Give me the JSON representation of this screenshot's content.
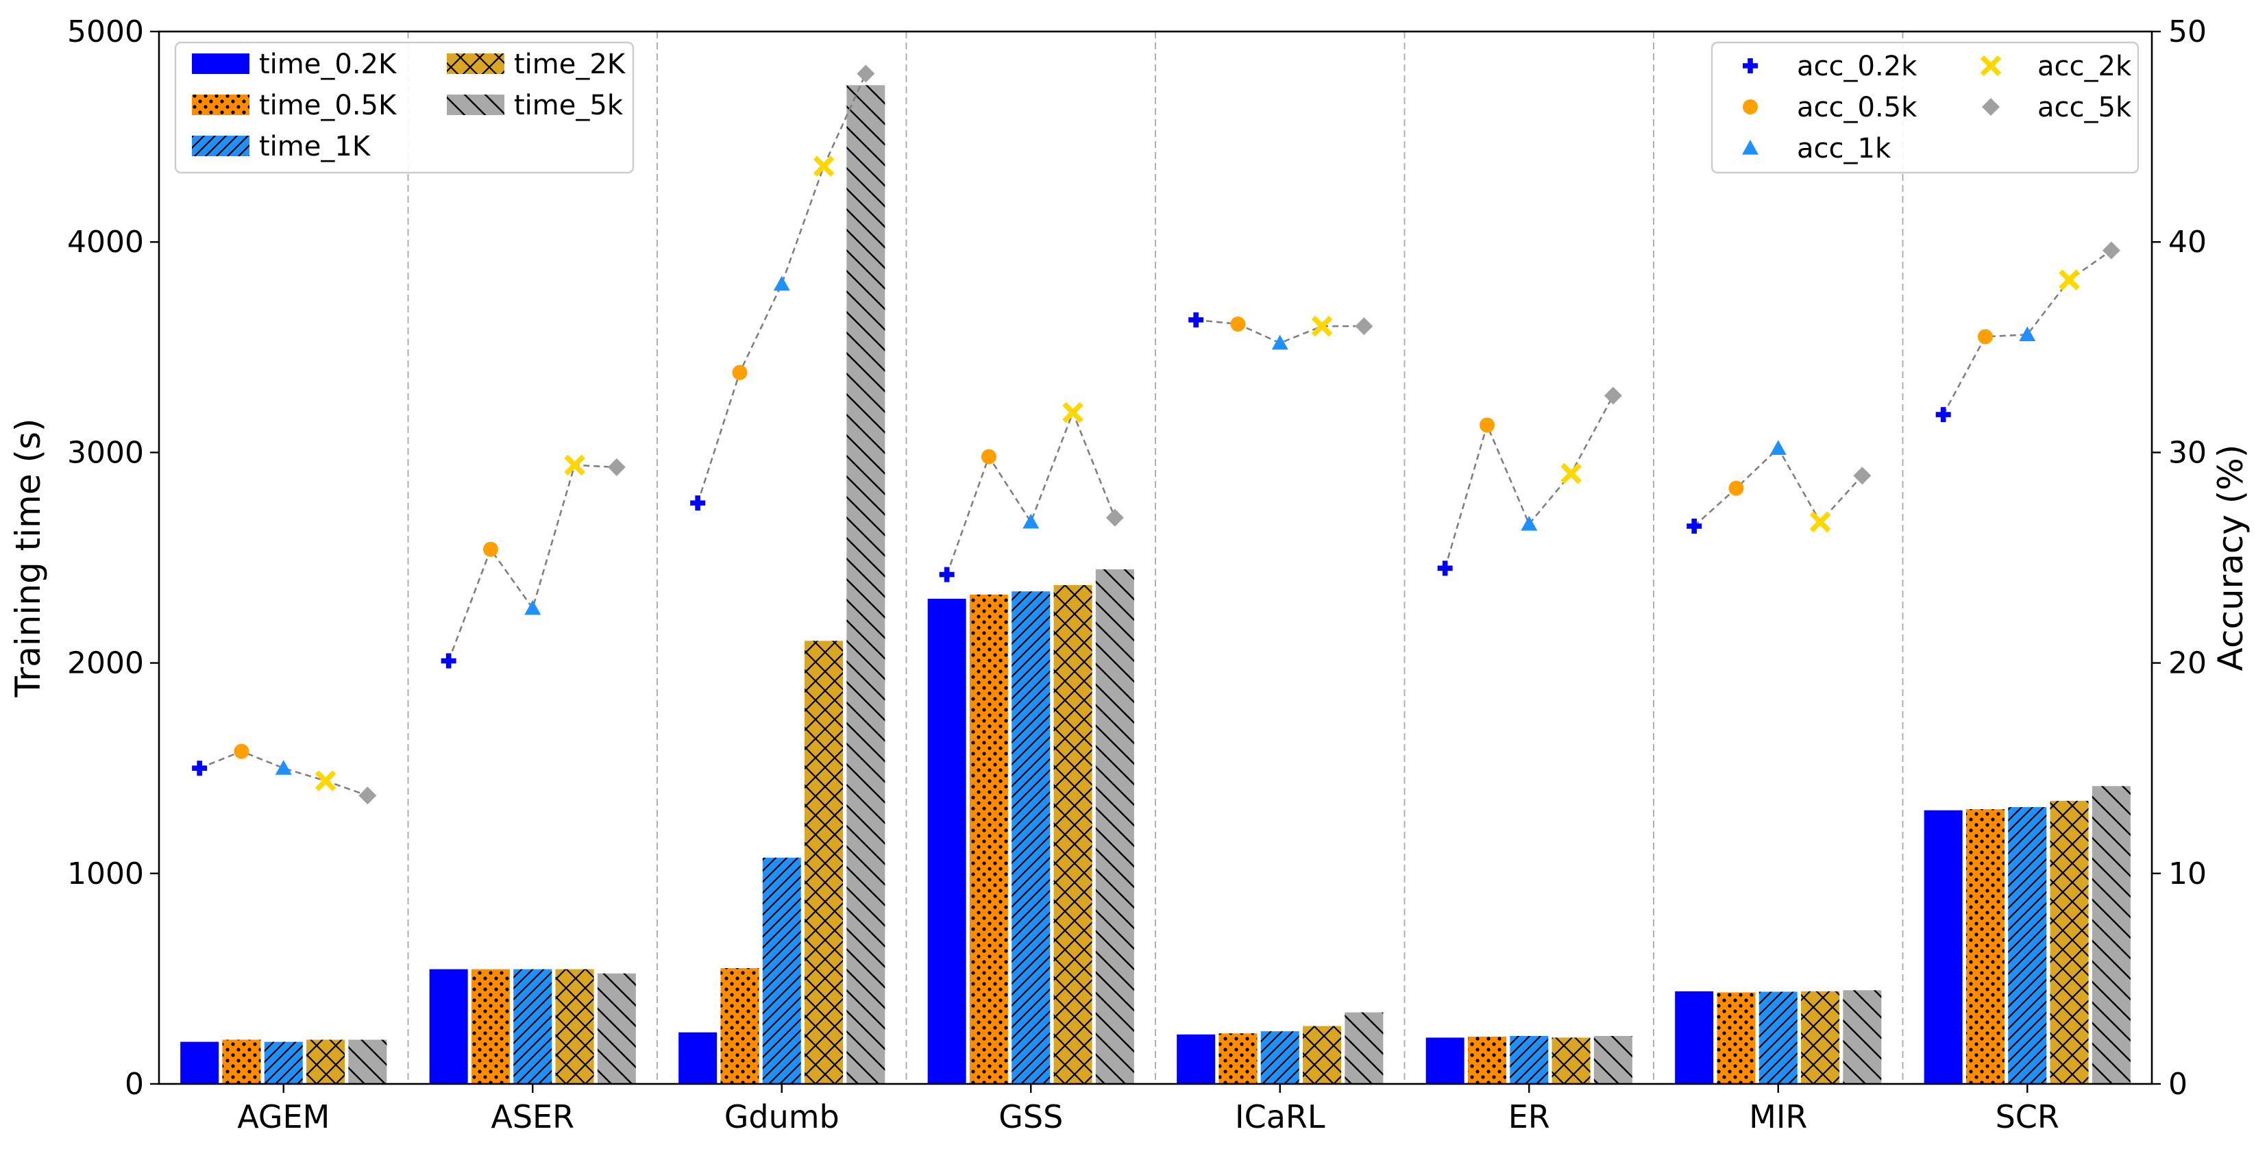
{
  "chart_data": {
    "type": "bar",
    "title": "",
    "xlabel": "",
    "ylabel": "Training time (s)",
    "y2label": "Accuracy (%)",
    "ylim": [
      0,
      5000
    ],
    "y2lim": [
      0,
      50
    ],
    "yticks": [
      0,
      1000,
      2000,
      3000,
      4000,
      5000
    ],
    "y2ticks": [
      0,
      10,
      20,
      30,
      40,
      50
    ],
    "categories": [
      "AGEM",
      "ASER",
      "Gdumb",
      "GSS",
      "ICaRL",
      "ER",
      "MIR",
      "SCR"
    ],
    "series": [
      {
        "name": "time_0.2K",
        "kind": "bar",
        "color": "#0000ff",
        "pattern": "solid",
        "values": [
          200,
          545,
          245,
          2305,
          235,
          220,
          440,
          1300
        ]
      },
      {
        "name": "time_0.5K",
        "kind": "bar",
        "color": "#ff8c00",
        "pattern": "dots",
        "values": [
          210,
          545,
          550,
          2325,
          240,
          225,
          435,
          1305
        ]
      },
      {
        "name": "time_1K",
        "kind": "bar",
        "color": "#1e90ff",
        "pattern": "diagonal",
        "values": [
          200,
          545,
          1075,
          2340,
          250,
          228,
          438,
          1315
        ]
      },
      {
        "name": "time_2K",
        "kind": "bar",
        "color": "#daa520",
        "pattern": "crosshatch",
        "values": [
          210,
          545,
          2105,
          2370,
          275,
          220,
          440,
          1345
        ]
      },
      {
        "name": "time_5k",
        "kind": "bar",
        "color": "#a9a9a9",
        "pattern": "backslash",
        "values": [
          210,
          525,
          4745,
          2445,
          340,
          228,
          445,
          1415
        ]
      }
    ],
    "accuracy_series": [
      {
        "name": "acc_0.2k",
        "marker": "plus",
        "color": "#0000ff",
        "values": [
          15.0,
          20.1,
          27.6,
          24.2,
          36.3,
          24.5,
          26.5,
          31.8
        ]
      },
      {
        "name": "acc_0.5k",
        "marker": "circle",
        "color": "#ff9f00",
        "values": [
          15.8,
          25.4,
          33.8,
          29.8,
          36.1,
          31.3,
          28.3,
          35.5
        ]
      },
      {
        "name": "acc_1k",
        "marker": "triangle",
        "color": "#1e90ff",
        "values": [
          15.0,
          22.6,
          38.0,
          26.7,
          35.2,
          26.6,
          30.2,
          35.6
        ]
      },
      {
        "name": "acc_2k",
        "marker": "x",
        "color": "#ffd700",
        "values": [
          14.4,
          29.4,
          43.6,
          31.9,
          36.0,
          29.0,
          26.7,
          38.2
        ]
      },
      {
        "name": "acc_5k",
        "marker": "diamond",
        "color": "#a0a0a0",
        "values": [
          13.7,
          29.3,
          48.0,
          26.9,
          36.0,
          32.7,
          28.9,
          39.6
        ]
      }
    ],
    "legend_left": [
      "time_0.2K",
      "time_0.5K",
      "time_1K",
      "time_2K",
      "time_5k"
    ],
    "legend_right": [
      "acc_0.2k",
      "acc_0.5k",
      "acc_1k",
      "acc_2k",
      "acc_5k"
    ]
  }
}
